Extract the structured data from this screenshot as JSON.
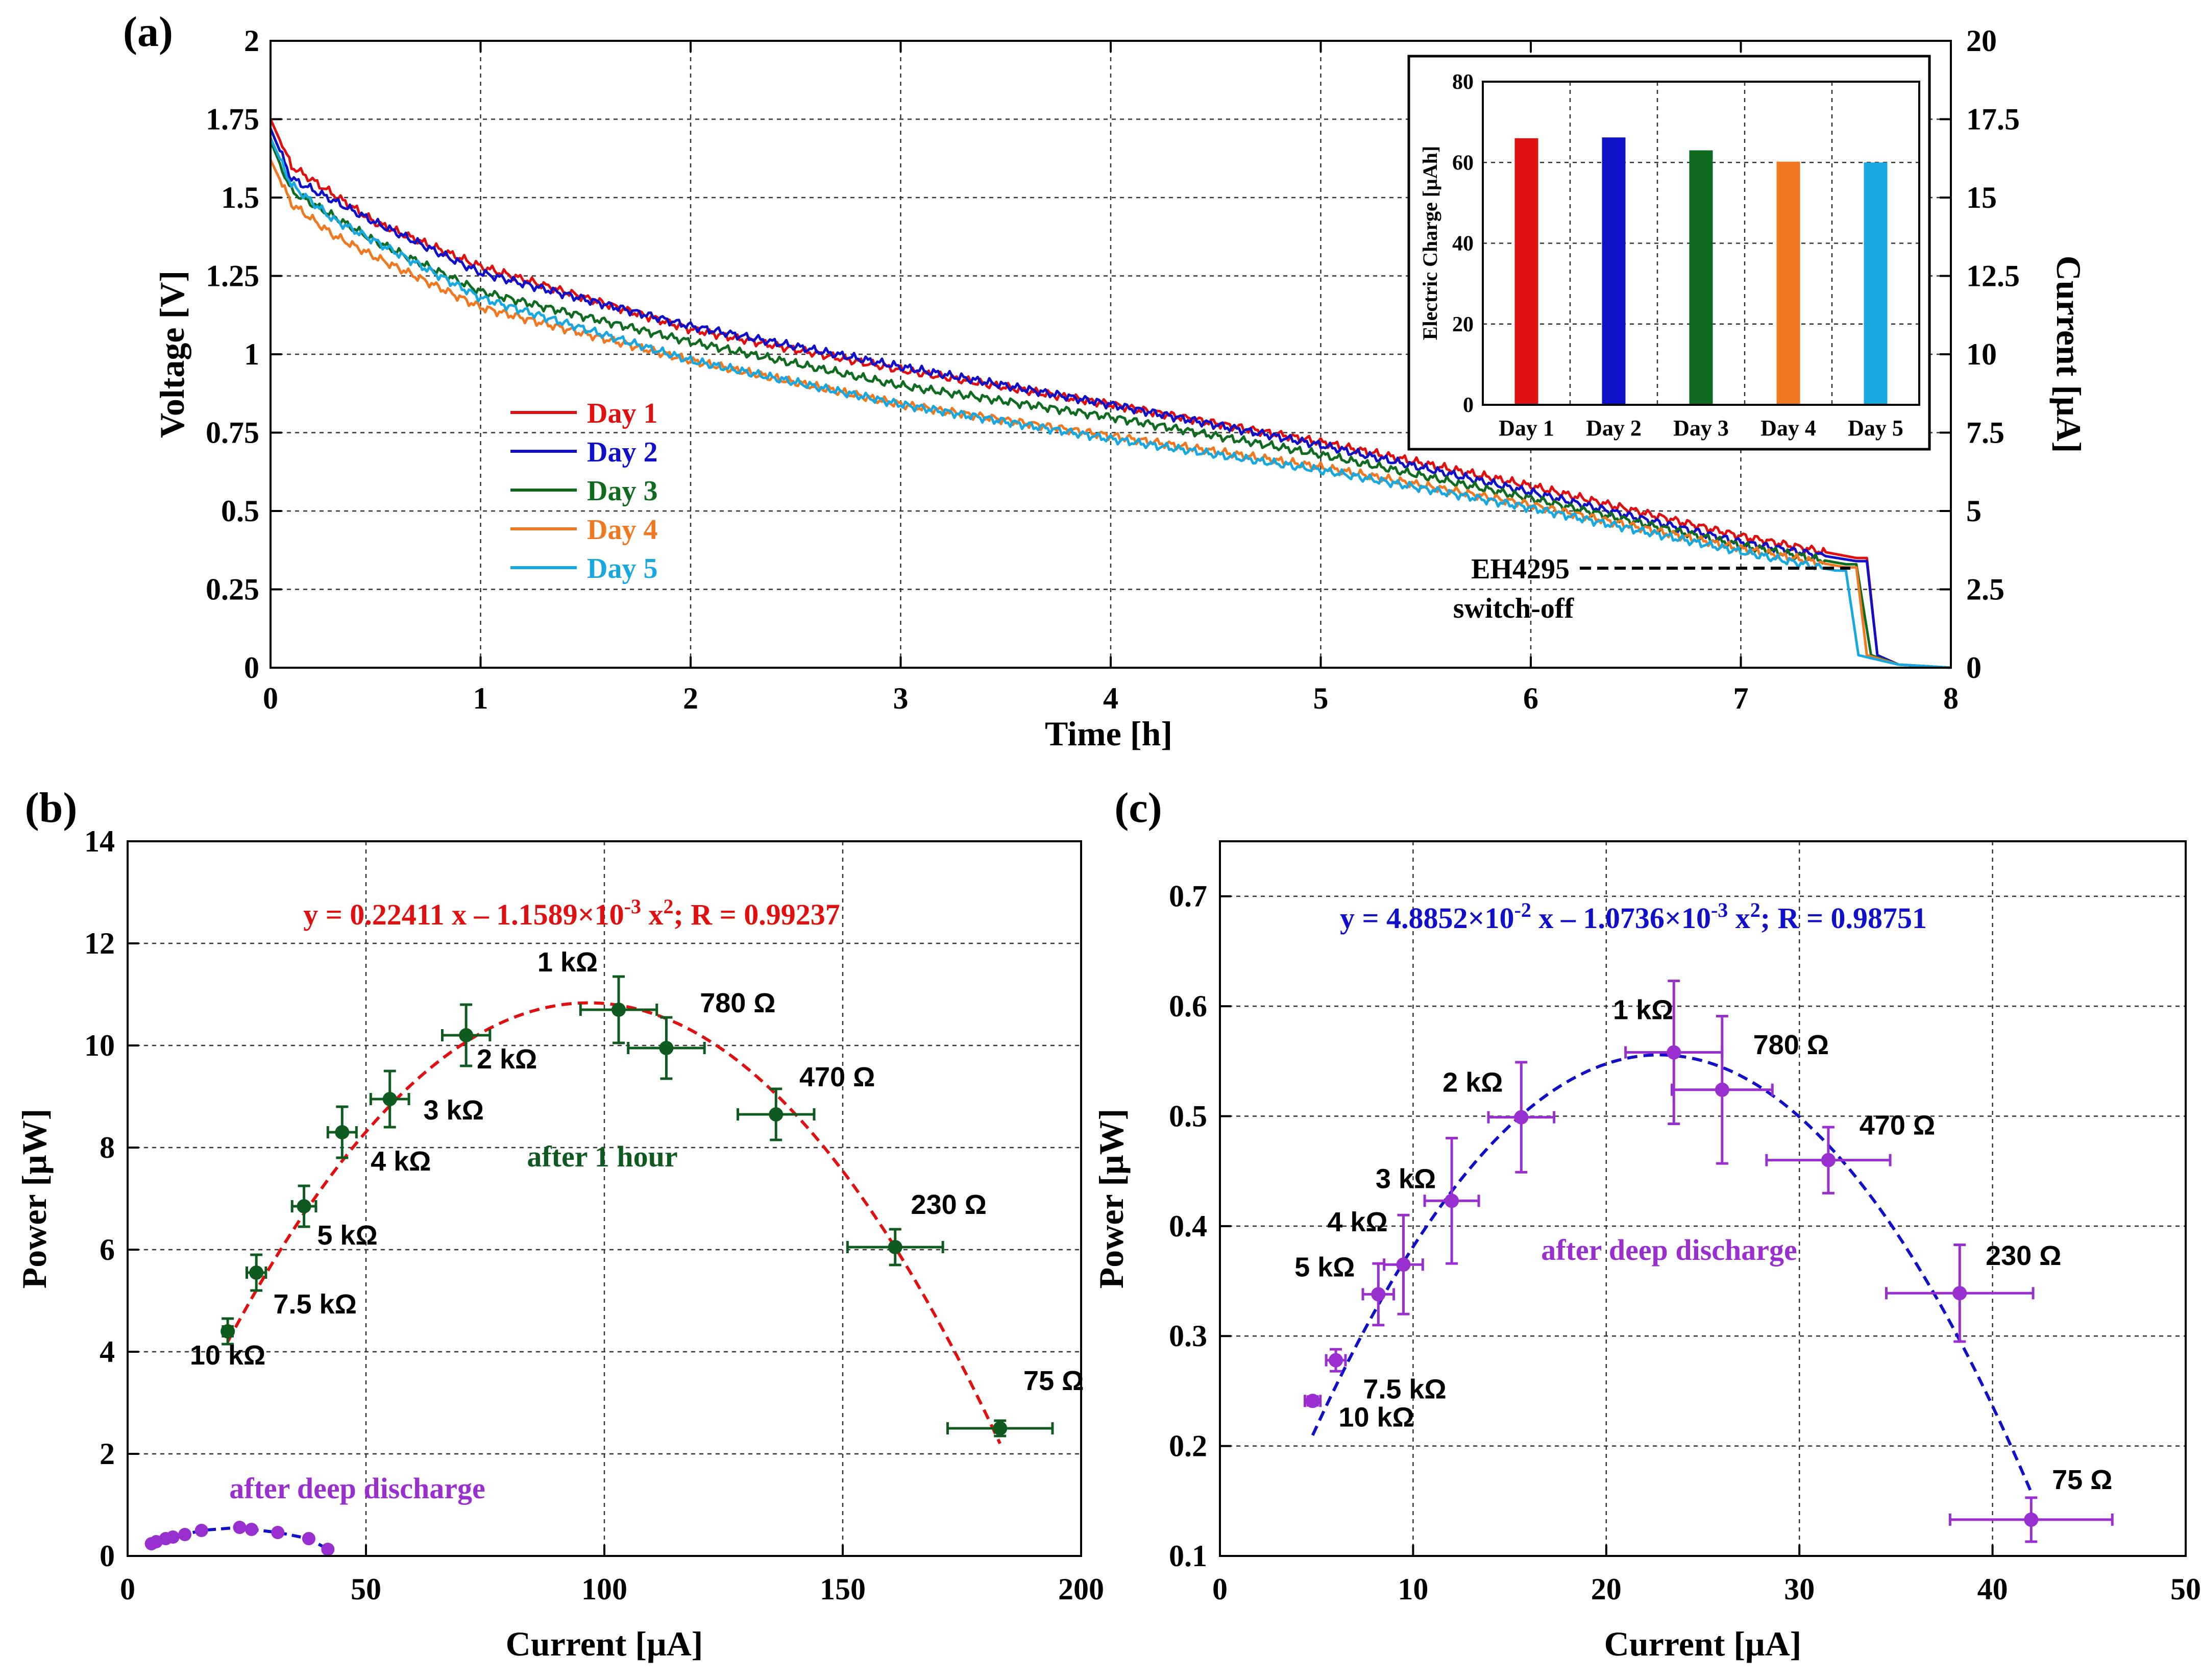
{
  "panels": {
    "a": {
      "label": "(a)",
      "chart_data": {
        "type": "line",
        "xlabel": "Time [h]",
        "ylabel": "Voltage [V]",
        "y2label": "Current [μA]",
        "xlim": [
          0,
          8
        ],
        "ylim": [
          0,
          2
        ],
        "y2lim": [
          0,
          20
        ],
        "xticks": [
          "0",
          "1",
          "2",
          "3",
          "4",
          "5",
          "6",
          "7",
          "8"
        ],
        "yticks": [
          "0",
          "0.25",
          "0.5",
          "0.75",
          "1",
          "1.25",
          "1.5",
          "1.75",
          "2"
        ],
        "y2ticks": [
          "0",
          "2.5",
          "5",
          "7.5",
          "10",
          "12.5",
          "15",
          "17.5",
          "20"
        ],
        "grid": true,
        "legend_position": "left-center",
        "series": [
          {
            "name": "Day 1",
            "color": "#e01010",
            "x": [
              0,
              0.1,
              0.3,
              0.5,
              1,
              2,
              3,
              4,
              5,
              6,
              7,
              7.55,
              7.6,
              7.65,
              7.75,
              8
            ],
            "y": [
              1.75,
              1.6,
              1.51,
              1.42,
              1.28,
              1.08,
              0.95,
              0.84,
              0.72,
              0.58,
              0.42,
              0.35,
              0.35,
              0.04,
              0.01,
              0.0
            ]
          },
          {
            "name": "Day 2",
            "color": "#1010c8",
            "x": [
              0,
              0.1,
              0.3,
              0.5,
              1,
              2,
              3,
              4,
              5,
              6,
              7,
              7.55,
              7.6,
              7.65,
              7.75,
              8
            ],
            "y": [
              1.72,
              1.56,
              1.49,
              1.42,
              1.26,
              1.09,
              0.96,
              0.84,
              0.71,
              0.56,
              0.4,
              0.34,
              0.34,
              0.04,
              0.01,
              0.0
            ]
          },
          {
            "name": "Day 3",
            "color": "#0f6b1f",
            "x": [
              0,
              0.1,
              0.3,
              0.5,
              1,
              2,
              3,
              4,
              5,
              6,
              7,
              7.5,
              7.55,
              7.62,
              7.75,
              8
            ],
            "y": [
              1.68,
              1.52,
              1.44,
              1.36,
              1.2,
              1.04,
              0.9,
              0.8,
              0.68,
              0.54,
              0.39,
              0.33,
              0.33,
              0.04,
              0.01,
              0.0
            ]
          },
          {
            "name": "Day 4",
            "color": "#f07820",
            "x": [
              0,
              0.1,
              0.3,
              0.5,
              1,
              2,
              3,
              4,
              5,
              6,
              7,
              7.5,
              7.55,
              7.6,
              7.75,
              8
            ],
            "y": [
              1.62,
              1.48,
              1.38,
              1.31,
              1.15,
              0.98,
              0.84,
              0.74,
              0.64,
              0.52,
              0.38,
              0.32,
              0.32,
              0.04,
              0.01,
              0.0
            ]
          },
          {
            "name": "Day 5",
            "color": "#18a8e0",
            "x": [
              0,
              0.1,
              0.3,
              0.5,
              1,
              2,
              3,
              4,
              5,
              6,
              7,
              7.45,
              7.5,
              7.56,
              7.75,
              8
            ],
            "y": [
              1.69,
              1.54,
              1.43,
              1.36,
              1.18,
              0.98,
              0.84,
              0.73,
              0.63,
              0.51,
              0.37,
              0.31,
              0.31,
              0.04,
              0.01,
              0.0
            ]
          }
        ],
        "annotations": [
          "EH4295",
          "switch-off"
        ]
      },
      "inset": {
        "chart_data": {
          "type": "bar",
          "ylabel": "Electric Charge [μAh]",
          "ylim": [
            0,
            80
          ],
          "yticks": [
            "0",
            "20",
            "40",
            "60",
            "80"
          ],
          "categories": [
            "Day 1",
            "Day 2",
            "Day 3",
            "Day 4",
            "Day 5"
          ],
          "values": [
            66,
            66.2,
            63,
            60.2,
            60
          ],
          "colors": [
            "#e01010",
            "#1010c8",
            "#0f6b1f",
            "#f07820",
            "#18a8e0"
          ],
          "grid": true
        }
      }
    },
    "b": {
      "label": "(b)",
      "chart_data": {
        "type": "scatter",
        "xlabel": "Current [μA]",
        "ylabel": "Power [μW]",
        "xlim": [
          0,
          200
        ],
        "ylim": [
          0,
          14
        ],
        "xticks": [
          "0",
          "50",
          "100",
          "150",
          "200"
        ],
        "yticks": [
          "0",
          "2",
          "4",
          "6",
          "8",
          "10",
          "12",
          "14"
        ],
        "grid": true,
        "fit_equation_parts": [
          "y = 0.22411 x – 1.1589×10",
          "-3",
          " x",
          "2",
          ";    R = 0.99237"
        ],
        "fit": {
          "a": 0.22411,
          "b": 0.0011589,
          "x_range": [
            21,
            183
          ],
          "color": "#e01010"
        },
        "series": [
          {
            "name": "after 1 hour",
            "color": "#0f5a1f",
            "points": [
              {
                "x": 21,
                "y": 4.4,
                "xerr": 1,
                "yerr": 0.25,
                "label": "10 kΩ"
              },
              {
                "x": 27,
                "y": 5.55,
                "xerr": 2,
                "yerr": 0.35,
                "label": "7.5 kΩ"
              },
              {
                "x": 37,
                "y": 6.85,
                "xerr": 2.5,
                "yerr": 0.4,
                "label": "5 kΩ"
              },
              {
                "x": 45,
                "y": 8.3,
                "xerr": 3,
                "yerr": 0.5,
                "label": "4 kΩ"
              },
              {
                "x": 55,
                "y": 8.95,
                "xerr": 4,
                "yerr": 0.55,
                "label": "3 kΩ"
              },
              {
                "x": 71,
                "y": 10.2,
                "xerr": 5,
                "yerr": 0.6,
                "label": "2 kΩ"
              },
              {
                "x": 103,
                "y": 10.7,
                "xerr": 8,
                "yerr": 0.65,
                "label": "1 kΩ"
              },
              {
                "x": 113,
                "y": 9.95,
                "xerr": 8,
                "yerr": 0.6,
                "label": "780 Ω"
              },
              {
                "x": 136,
                "y": 8.65,
                "xerr": 8,
                "yerr": 0.5,
                "label": "470 Ω"
              },
              {
                "x": 161,
                "y": 6.05,
                "xerr": 10,
                "yerr": 0.35,
                "label": "230 Ω"
              },
              {
                "x": 183,
                "y": 2.5,
                "xerr": 11,
                "yerr": 0.15,
                "label": "75 Ω"
              }
            ]
          },
          {
            "name": "after deep discharge",
            "color": "#9a2fd0",
            "points": [
              {
                "x": 5,
                "y": 0.24
              },
              {
                "x": 6,
                "y": 0.28
              },
              {
                "x": 8,
                "y": 0.34
              },
              {
                "x": 9.5,
                "y": 0.37
              },
              {
                "x": 12,
                "y": 0.42
              },
              {
                "x": 15.5,
                "y": 0.5
              },
              {
                "x": 23.5,
                "y": 0.56
              },
              {
                "x": 26,
                "y": 0.52
              },
              {
                "x": 31.5,
                "y": 0.46
              },
              {
                "x": 38,
                "y": 0.34
              },
              {
                "x": 42,
                "y": 0.13
              }
            ]
          }
        ],
        "text_labels": [
          "after 1 hour",
          "after deep discharge"
        ]
      }
    },
    "c": {
      "label": "(c)",
      "chart_data": {
        "type": "scatter",
        "xlabel": "Current [μA]",
        "ylabel": "Power [μW]",
        "xlim": [
          0,
          50
        ],
        "ylim": [
          0.1,
          0.75
        ],
        "xticks": [
          "0",
          "10",
          "20",
          "30",
          "40",
          "50"
        ],
        "yticks": [
          "0.1",
          "0.2",
          "0.3",
          "0.4",
          "0.5",
          "0.6",
          "0.7"
        ],
        "grid": true,
        "fit_equation_parts": [
          "y = 4.8852×10",
          "-2",
          " x – 1.0736×10",
          "-3",
          " x",
          "2",
          ";    R = 0.98751"
        ],
        "fit": {
          "a": 0.048852,
          "b": 0.0010736,
          "x_range": [
            4.8,
            42
          ],
          "color": "#1010c8"
        },
        "series": [
          {
            "name": "after deep discharge",
            "color": "#9a2fd0",
            "points": [
              {
                "x": 4.8,
                "y": 0.241,
                "xerr": 0.4,
                "yerr": 0.004,
                "label": "10 kΩ"
              },
              {
                "x": 6.0,
                "y": 0.278,
                "xerr": 0.5,
                "yerr": 0.01,
                "label": "7.5 kΩ"
              },
              {
                "x": 8.2,
                "y": 0.338,
                "xerr": 0.8,
                "yerr": 0.028,
                "label": "5 kΩ"
              },
              {
                "x": 9.5,
                "y": 0.365,
                "xerr": 1.0,
                "yerr": 0.045,
                "label": "4 kΩ"
              },
              {
                "x": 12.0,
                "y": 0.423,
                "xerr": 1.4,
                "yerr": 0.057,
                "label": "3 kΩ"
              },
              {
                "x": 15.6,
                "y": 0.499,
                "xerr": 1.7,
                "yerr": 0.05,
                "label": "2 kΩ"
              },
              {
                "x": 23.5,
                "y": 0.558,
                "xerr": 2.5,
                "yerr": 0.065,
                "label": "1 kΩ"
              },
              {
                "x": 26.0,
                "y": 0.524,
                "xerr": 2.6,
                "yerr": 0.067,
                "label": "780 Ω"
              },
              {
                "x": 31.5,
                "y": 0.46,
                "xerr": 3.2,
                "yerr": 0.03,
                "label": "470 Ω"
              },
              {
                "x": 38.3,
                "y": 0.339,
                "xerr": 3.8,
                "yerr": 0.044,
                "label": "230 Ω"
              },
              {
                "x": 42.0,
                "y": 0.133,
                "xerr": 4.2,
                "yerr": 0.02,
                "label": "75 Ω"
              }
            ]
          }
        ],
        "text_labels": [
          "after deep discharge"
        ]
      }
    }
  }
}
